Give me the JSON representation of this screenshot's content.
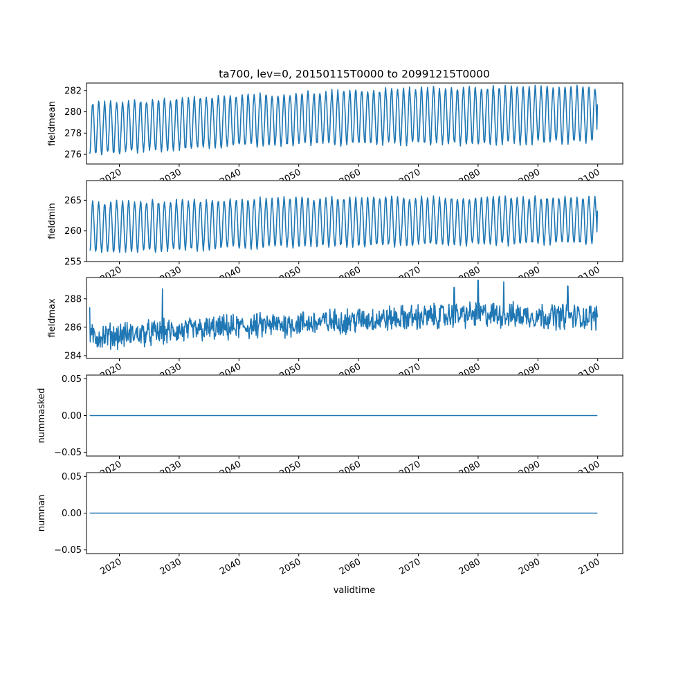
{
  "chart_data": {
    "type": "line",
    "title": "ta700, lev=0, 20150115T0000 to 20991215T0000",
    "xlabel": "validtime",
    "x_range": [
      "2015-01-15",
      "2099-12-15"
    ],
    "xlim": [
      2014.5,
      2104.2
    ],
    "x_ticks": [
      2020,
      2030,
      2040,
      2050,
      2060,
      2070,
      2080,
      2090,
      2100
    ],
    "x_tick_labels": [
      "2020",
      "2030",
      "2040",
      "2050",
      "2060",
      "2070",
      "2080",
      "2090",
      "2100"
    ],
    "color": "#1f77b4",
    "panels": [
      {
        "ylabel": "fieldmean",
        "ylim": [
          275.1,
          282.7
        ],
        "y_ticks": [
          276,
          278,
          280,
          282
        ],
        "y_tick_labels": [
          "276",
          "278",
          "280",
          "282"
        ],
        "pattern": "seasonal",
        "summer_peak": [
          [
            2015,
            280.8
          ],
          [
            2040,
            281.5
          ],
          [
            2060,
            282.0
          ],
          [
            2080,
            282.3
          ],
          [
            2100,
            282.3
          ]
        ],
        "winter_trough": [
          [
            2015,
            276.0
          ],
          [
            2040,
            276.8
          ],
          [
            2060,
            277.0
          ],
          [
            2080,
            277.0
          ],
          [
            2100,
            277.2
          ]
        ],
        "last_value": 280.7
      },
      {
        "ylabel": "fieldmin",
        "ylim": [
          255.0,
          268.2
        ],
        "y_ticks": [
          255,
          260,
          265
        ],
        "y_tick_labels": [
          "255",
          "260",
          "265"
        ],
        "pattern": "seasonal",
        "summer_peak": [
          [
            2015,
            264.6
          ],
          [
            2050,
            265.3
          ],
          [
            2100,
            265.5
          ]
        ],
        "winter_trough": [
          [
            2015,
            256.5
          ],
          [
            2050,
            257.5
          ],
          [
            2100,
            258.0
          ]
        ],
        "last_value": 263.3
      },
      {
        "ylabel": "fieldmax",
        "ylim": [
          283.8,
          289.5
        ],
        "y_ticks": [
          284,
          286,
          288
        ],
        "y_tick_labels": [
          "284",
          "286",
          "288"
        ],
        "pattern": "noisy-trend",
        "trend": [
          [
            2015,
            285.3
          ],
          [
            2040,
            286.0
          ],
          [
            2060,
            286.5
          ],
          [
            2080,
            286.9
          ],
          [
            2100,
            286.7
          ]
        ],
        "spikes": [
          [
            2027.2,
            288.7
          ],
          [
            2080.0,
            289.3
          ],
          [
            2084.3,
            289.2
          ],
          [
            2076.0,
            288.8
          ],
          [
            2095.0,
            288.9
          ]
        ],
        "first_value": 287.4,
        "last_value": 286.7
      },
      {
        "ylabel": "nummasked",
        "ylim": [
          -0.055,
          0.055
        ],
        "y_ticks": [
          -0.05,
          0.0,
          0.05
        ],
        "y_tick_labels": [
          "−0.05",
          "0.00",
          "0.05"
        ],
        "pattern": "constant",
        "value": 0
      },
      {
        "ylabel": "numnan",
        "ylim": [
          -0.055,
          0.055
        ],
        "y_ticks": [
          -0.05,
          0.0,
          0.05
        ],
        "y_tick_labels": [
          "−0.05",
          "0.00",
          "0.05"
        ],
        "pattern": "constant",
        "value": 0
      }
    ]
  }
}
